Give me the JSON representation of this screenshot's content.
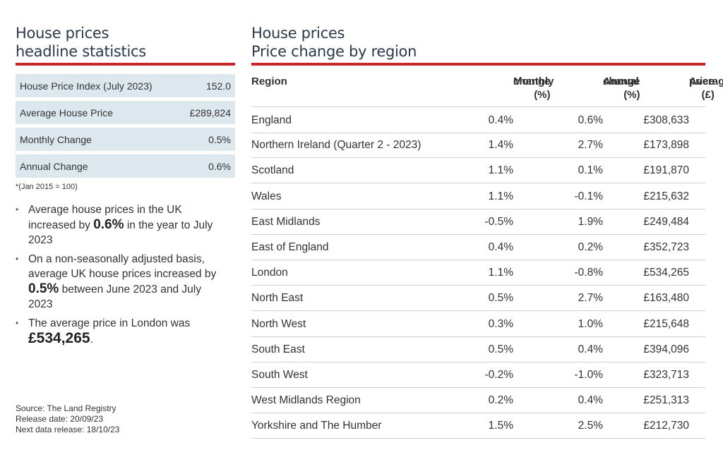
{
  "left": {
    "title_line1": "House prices",
    "title_line2": "headline statistics",
    "stats": [
      {
        "label": "House Price Index (July 2023)",
        "value": "152.0"
      },
      {
        "label": "Average House Price",
        "value": "£289,824"
      },
      {
        "label": "Monthly Change",
        "value": "0.5%"
      },
      {
        "label": "Annual Change",
        "value": "0.6%"
      }
    ],
    "footnote": "*(Jan 2015 = 100)",
    "bullets": {
      "b1_pre": "Average house prices in the UK increased by ",
      "b1_bold": "0.6%",
      "b1_post": " in the year to July 2023",
      "b2_pre": "On a non-seasonally adjusted basis, average UK house prices increased by ",
      "b2_bold": "0.5%",
      "b2_post": " between June 2023 and July 2023",
      "b3_pre": "The average price in London was ",
      "b3_bold": "£534,265",
      "b3_post": "."
    },
    "source": "Source: The Land Registry",
    "release_date": "Release date: 20/09/23",
    "next_release": "Next data release: 18/10/23"
  },
  "right": {
    "title_line1": "House prices",
    "title_line2": "Price change by region",
    "headers": {
      "region": "Region",
      "monthly_1": "Monthly",
      "monthly_2": "change (%)",
      "annual_1": "Annual",
      "annual_2": "change (%)",
      "avg_1": "Average",
      "avg_2": "price (£)"
    },
    "rows": [
      {
        "region": "England",
        "monthly": "0.4%",
        "annual": "0.6%",
        "price": "£308,633"
      },
      {
        "region": "Northern Ireland (Quarter 2 - 2023)",
        "monthly": "1.4%",
        "annual": "2.7%",
        "price": "£173,898"
      },
      {
        "region": "Scotland",
        "monthly": "1.1%",
        "annual": "0.1%",
        "price": "£191,870"
      },
      {
        "region": "Wales",
        "monthly": "1.1%",
        "annual": "-0.1%",
        "price": "£215,632"
      },
      {
        "region": "East Midlands",
        "monthly": "-0.5%",
        "annual": "1.9%",
        "price": "£249,484"
      },
      {
        "region": "East of England",
        "monthly": "0.4%",
        "annual": "0.2%",
        "price": "£352,723"
      },
      {
        "region": "London",
        "monthly": "1.1%",
        "annual": "-0.8%",
        "price": "£534,265"
      },
      {
        "region": "North East",
        "monthly": "0.5%",
        "annual": "2.7%",
        "price": "£163,480"
      },
      {
        "region": "North West",
        "monthly": "0.3%",
        "annual": "1.0%",
        "price": "£215,648"
      },
      {
        "region": "South East",
        "monthly": "0.5%",
        "annual": "0.4%",
        "price": "£394,096"
      },
      {
        "region": "South West",
        "monthly": "-0.2%",
        "annual": "-1.0%",
        "price": "£323,713"
      },
      {
        "region": "West Midlands Region",
        "monthly": "0.2%",
        "annual": "0.4%",
        "price": "£251,313"
      },
      {
        "region": "Yorkshire and The Humber",
        "monthly": "1.5%",
        "annual": "2.5%",
        "price": "£212,730"
      }
    ]
  },
  "colors": {
    "accent": "#c8242b",
    "stat_bg": "#dde7ee",
    "title": "#2b3a4a"
  }
}
